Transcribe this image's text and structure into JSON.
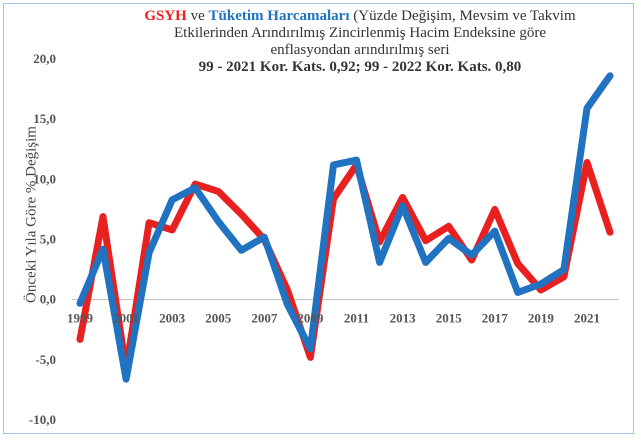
{
  "chart_data": {
    "type": "line",
    "title": {
      "part1": "GSYH",
      "part2": " ve ",
      "part3": "Tüketim Harcamaları",
      "part4": " (Yüzde Değişim, Mevsim ve Takvim",
      "line2": "Etkilerinden Arındırılmış  Zincirlenmiş Hacim Endeksine göre",
      "line3": "enflasyondan arındırılmış seri",
      "line4": "99 - 2021 Kor. Kats. 0,92;    99 - 2022 Kor. Kats. 0,80"
    },
    "ylabel": "Önceki Yıla Göre % Değişim",
    "ylim": [
      -10,
      20
    ],
    "yticks": [
      "-10,0",
      "-5,0",
      "0,0",
      "5,0",
      "10,0",
      "15,0",
      "20,0"
    ],
    "xticks": [
      "1999",
      "2001",
      "2003",
      "2005",
      "2007",
      "2009",
      "2011",
      "2013",
      "2015",
      "2017",
      "2019",
      "2021"
    ],
    "x": [
      1999,
      2000,
      2001,
      2002,
      2003,
      2004,
      2005,
      2006,
      2007,
      2008,
      2009,
      2010,
      2011,
      2012,
      2013,
      2014,
      2015,
      2016,
      2017,
      2018,
      2019,
      2020,
      2021,
      2022
    ],
    "series": [
      {
        "name": "GSYH",
        "color": "#e8201f",
        "values": [
          -3.3,
          6.9,
          -5.8,
          6.4,
          5.8,
          9.6,
          9.0,
          7.1,
          5.0,
          0.8,
          -4.8,
          8.4,
          11.2,
          4.8,
          8.5,
          4.9,
          6.1,
          3.3,
          7.5,
          3.0,
          0.8,
          1.9,
          11.4,
          5.6
        ]
      },
      {
        "name": "Tüketim Harcamaları",
        "color": "#1f73c1",
        "values": [
          -0.3,
          4.2,
          -6.6,
          3.9,
          8.3,
          9.3,
          6.5,
          4.1,
          5.2,
          -0.4,
          -4.1,
          11.2,
          11.6,
          3.1,
          7.8,
          3.1,
          5.1,
          3.7,
          5.7,
          0.6,
          1.3,
          2.5,
          15.9,
          18.6
        ]
      }
    ],
    "grid": false,
    "legend": "none"
  }
}
